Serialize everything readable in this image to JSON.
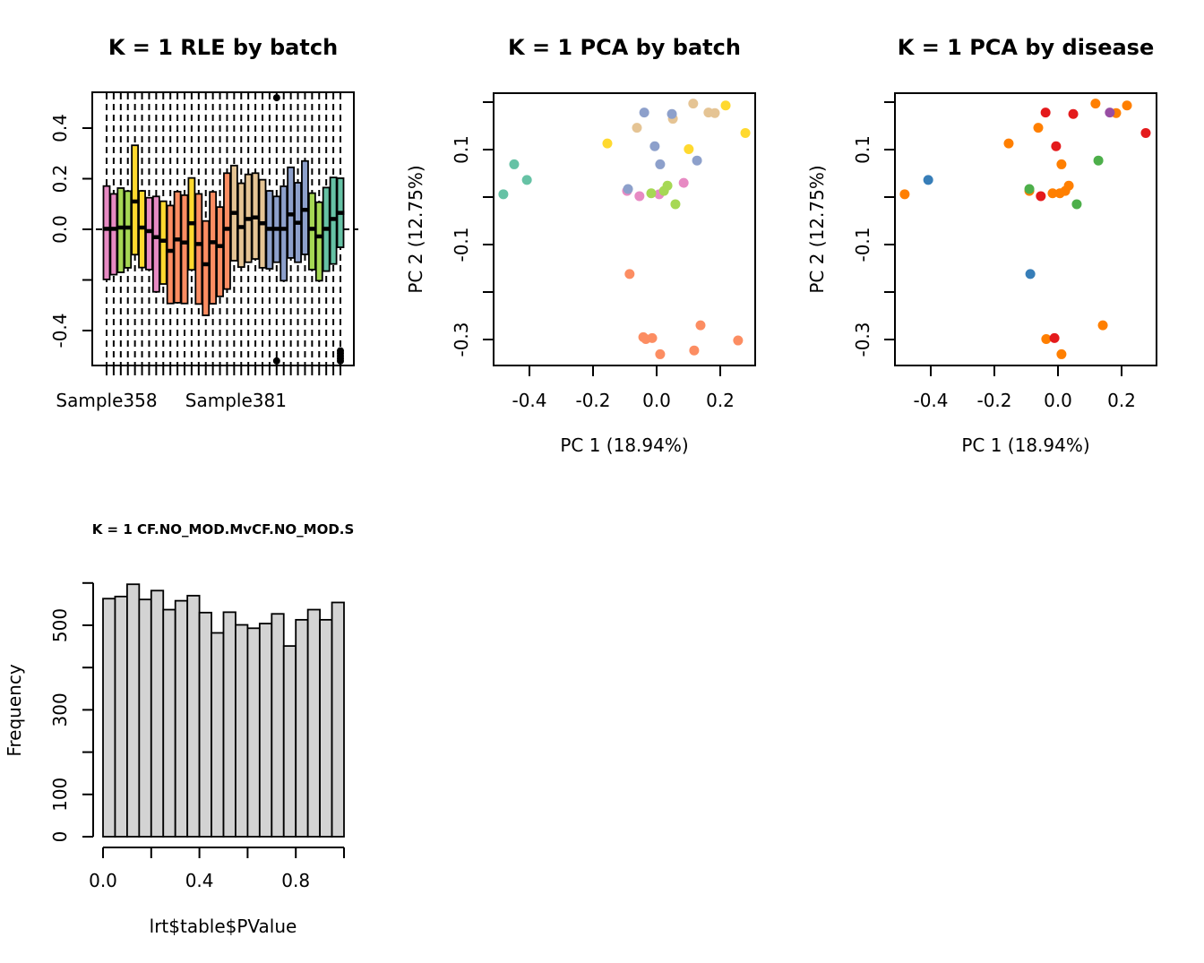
{
  "chart_data": [
    {
      "id": "rle",
      "type": "boxplot",
      "title": "K = 1 RLE by batch",
      "xlabel": "",
      "ylabel": "",
      "ylim": [
        -0.5,
        0.54
      ],
      "yticks": [
        -0.4,
        -0.2,
        0.0,
        0.2,
        0.4
      ],
      "ytick_labels": [
        "-0.4",
        "",
        "0.0",
        "0.2",
        "0.4"
      ],
      "xtick_labels": [
        {
          "index": 1,
          "label": "Sample358"
        },
        {
          "index": 19,
          "label": "Sample381"
        }
      ],
      "reference_line": 0.0,
      "whisker_style": "dashed",
      "colors": {
        "pink": "#E78AC3",
        "green": "#A6D854",
        "yellow": "#FFD92F",
        "orange": "#FC8D62",
        "tan": "#E5C494",
        "blue": "#8DA0CB",
        "teal": "#66C2A5"
      },
      "boxes": [
        {
          "color": "pink",
          "q1": -0.198,
          "median": 0.002,
          "q3": 0.171
        },
        {
          "color": "pink",
          "q1": -0.179,
          "median": 0.002,
          "q3": 0.14
        },
        {
          "color": "green",
          "q1": -0.17,
          "median": 0.007,
          "q3": 0.163
        },
        {
          "color": "green",
          "q1": -0.152,
          "median": 0.007,
          "q3": 0.151
        },
        {
          "color": "yellow",
          "q1": -0.1,
          "median": 0.11,
          "q3": 0.332
        },
        {
          "color": "yellow",
          "q1": -0.151,
          "median": 0.007,
          "q3": 0.152
        },
        {
          "color": "pink",
          "q1": -0.159,
          "median": -0.007,
          "q3": 0.125
        },
        {
          "color": "pink",
          "q1": -0.247,
          "median": -0.031,
          "q3": 0.13
        },
        {
          "color": "yellow",
          "q1": -0.216,
          "median": -0.045,
          "q3": 0.111
        },
        {
          "color": "orange",
          "q1": -0.293,
          "median": -0.085,
          "q3": 0.094
        },
        {
          "color": "orange",
          "q1": -0.29,
          "median": -0.04,
          "q3": 0.149
        },
        {
          "color": "orange",
          "q1": -0.293,
          "median": -0.052,
          "q3": 0.135
        },
        {
          "color": "yellow",
          "q1": -0.16,
          "median": 0.024,
          "q3": 0.203
        },
        {
          "color": "orange",
          "q1": -0.295,
          "median": -0.058,
          "q3": 0.14
        },
        {
          "color": "orange",
          "q1": -0.34,
          "median": -0.138,
          "q3": 0.033
        },
        {
          "color": "orange",
          "q1": -0.294,
          "median": -0.051,
          "q3": 0.148
        },
        {
          "color": "orange",
          "q1": -0.265,
          "median": -0.066,
          "q3": 0.088
        },
        {
          "color": "orange",
          "q1": -0.236,
          "median": 0.002,
          "q3": 0.222
        },
        {
          "color": "tan",
          "q1": -0.124,
          "median": 0.065,
          "q3": 0.252
        },
        {
          "color": "tan",
          "q1": -0.149,
          "median": 0.009,
          "q3": 0.182
        },
        {
          "color": "tan",
          "q1": -0.13,
          "median": 0.041,
          "q3": 0.217
        },
        {
          "color": "tan",
          "q1": -0.117,
          "median": 0.047,
          "q3": 0.222
        },
        {
          "color": "tan",
          "q1": -0.152,
          "median": 0.024,
          "q3": 0.196
        },
        {
          "color": "blue",
          "q1": -0.156,
          "median": 0.002,
          "q3": 0.152
        },
        {
          "color": "blue",
          "q1": -0.13,
          "median": 0.002,
          "q3": 0.13,
          "outliers": [
            0.52,
            -0.52
          ]
        },
        {
          "color": "blue",
          "q1": -0.203,
          "median": 0.002,
          "q3": 0.17
        },
        {
          "color": "blue",
          "q1": -0.113,
          "median": 0.059,
          "q3": 0.245
        },
        {
          "color": "blue",
          "q1": -0.13,
          "median": 0.026,
          "q3": 0.184
        },
        {
          "color": "blue",
          "q1": -0.099,
          "median": 0.077,
          "q3": 0.27
        },
        {
          "color": "green",
          "q1": -0.159,
          "median": 0.002,
          "q3": 0.143
        },
        {
          "color": "green",
          "q1": -0.203,
          "median": -0.028,
          "q3": 0.107
        },
        {
          "color": "teal",
          "q1": -0.165,
          "median": 0.002,
          "q3": 0.165
        },
        {
          "color": "teal",
          "q1": -0.137,
          "median": 0.041,
          "q3": 0.205
        },
        {
          "color": "teal",
          "q1": -0.071,
          "median": 0.065,
          "q3": 0.202,
          "outliers": [
            -0.48,
            -0.49,
            -0.5,
            -0.51,
            -0.52
          ]
        }
      ]
    },
    {
      "id": "pca_batch",
      "type": "scatter",
      "title": "K = 1 PCA by batch",
      "xlabel": "PC 1 (18.94%)",
      "ylabel": "PC 2 (12.75%)",
      "xlim": [
        -0.515,
        0.31
      ],
      "ylim": [
        -0.353,
        0.218
      ],
      "xticks": [
        -0.4,
        -0.2,
        0.0,
        0.2
      ],
      "xtick_labels": [
        "-0.4",
        "-0.2",
        "0.0",
        "0.2"
      ],
      "yticks": [
        -0.3,
        -0.2,
        -0.1,
        0.0,
        0.1,
        0.2
      ],
      "ytick_labels": [
        "-0.3",
        "",
        "-0.1",
        "",
        "0.1",
        ""
      ],
      "points": [
        {
          "x": -0.448,
          "y": 0.069,
          "color": "#66C2A5"
        },
        {
          "x": -0.408,
          "y": 0.036,
          "color": "#66C2A5"
        },
        {
          "x": -0.482,
          "y": 0.006,
          "color": "#66C2A5"
        },
        {
          "x": -0.155,
          "y": 0.113,
          "color": "#FFD92F"
        },
        {
          "x": 0.217,
          "y": 0.193,
          "color": "#FFD92F"
        },
        {
          "x": 0.279,
          "y": 0.135,
          "color": "#FFD92F"
        },
        {
          "x": 0.101,
          "y": 0.101,
          "color": "#FFD92F"
        },
        {
          "x": 0.115,
          "y": 0.197,
          "color": "#E5C494"
        },
        {
          "x": 0.163,
          "y": 0.178,
          "color": "#E5C494"
        },
        {
          "x": 0.183,
          "y": 0.177,
          "color": "#E5C494"
        },
        {
          "x": 0.051,
          "y": 0.165,
          "color": "#E5C494"
        },
        {
          "x": -0.062,
          "y": 0.146,
          "color": "#E5C494"
        },
        {
          "x": -0.039,
          "y": 0.178,
          "color": "#8DA0CB"
        },
        {
          "x": 0.048,
          "y": 0.175,
          "color": "#8DA0CB"
        },
        {
          "x": -0.006,
          "y": 0.107,
          "color": "#8DA0CB"
        },
        {
          "x": 0.011,
          "y": 0.069,
          "color": "#8DA0CB"
        },
        {
          "x": 0.127,
          "y": 0.077,
          "color": "#8DA0CB"
        },
        {
          "x": -0.093,
          "y": 0.013,
          "color": "#E78AC3"
        },
        {
          "x": -0.09,
          "y": 0.017,
          "color": "#8DA0CB"
        },
        {
          "x": -0.054,
          "y": 0.002,
          "color": "#E78AC3"
        },
        {
          "x": 0.008,
          "y": 0.006,
          "color": "#E78AC3"
        },
        {
          "x": 0.085,
          "y": 0.03,
          "color": "#E78AC3"
        },
        {
          "x": -0.017,
          "y": 0.008,
          "color": "#A6D854"
        },
        {
          "x": 0.023,
          "y": 0.013,
          "color": "#A6D854"
        },
        {
          "x": 0.034,
          "y": 0.024,
          "color": "#A6D854"
        },
        {
          "x": 0.059,
          "y": -0.015,
          "color": "#A6D854"
        },
        {
          "x": -0.085,
          "y": -0.162,
          "color": "#FC8D62"
        },
        {
          "x": -0.042,
          "y": -0.295,
          "color": "#FC8D62"
        },
        {
          "x": -0.034,
          "y": -0.299,
          "color": "#FC8D62"
        },
        {
          "x": -0.014,
          "y": -0.297,
          "color": "#FC8D62"
        },
        {
          "x": 0.011,
          "y": -0.331,
          "color": "#FC8D62"
        },
        {
          "x": 0.138,
          "y": -0.27,
          "color": "#FC8D62"
        },
        {
          "x": 0.118,
          "y": -0.323,
          "color": "#FC8D62"
        },
        {
          "x": 0.256,
          "y": -0.302,
          "color": "#FC8D62"
        }
      ]
    },
    {
      "id": "pca_disease",
      "type": "scatter",
      "title": "K = 1 PCA by disease",
      "xlabel": "PC 1 (18.94%)",
      "ylabel": "PC 2 (12.75%)",
      "xlim": [
        -0.515,
        0.31
      ],
      "ylim": [
        -0.353,
        0.218
      ],
      "xticks": [
        -0.4,
        -0.2,
        0.0,
        0.2
      ],
      "xtick_labels": [
        "-0.4",
        "-0.2",
        "0.0",
        "0.2"
      ],
      "yticks": [
        -0.3,
        -0.2,
        -0.1,
        0.0,
        0.1,
        0.2
      ],
      "ytick_labels": [
        "-0.3",
        "",
        "-0.1",
        "",
        "0.1",
        ""
      ],
      "points": [
        {
          "x": -0.482,
          "y": 0.006,
          "color": "#FF7F00"
        },
        {
          "x": -0.408,
          "y": 0.036,
          "color": "#377EB8"
        },
        {
          "x": -0.155,
          "y": 0.113,
          "color": "#FF7F00"
        },
        {
          "x": -0.062,
          "y": 0.146,
          "color": "#FF7F00"
        },
        {
          "x": -0.039,
          "y": 0.178,
          "color": "#E41A1C"
        },
        {
          "x": 0.048,
          "y": 0.175,
          "color": "#E41A1C"
        },
        {
          "x": 0.118,
          "y": 0.197,
          "color": "#FF7F00"
        },
        {
          "x": 0.183,
          "y": 0.177,
          "color": "#FF7F00"
        },
        {
          "x": 0.163,
          "y": 0.178,
          "color": "#984EA3"
        },
        {
          "x": 0.217,
          "y": 0.193,
          "color": "#FF7F00"
        },
        {
          "x": 0.276,
          "y": 0.135,
          "color": "#E41A1C"
        },
        {
          "x": -0.006,
          "y": 0.107,
          "color": "#E41A1C"
        },
        {
          "x": 0.011,
          "y": 0.069,
          "color": "#FF7F00"
        },
        {
          "x": 0.127,
          "y": 0.077,
          "color": "#4DAF4A"
        },
        {
          "x": -0.09,
          "y": 0.013,
          "color": "#FF7F00"
        },
        {
          "x": -0.09,
          "y": 0.017,
          "color": "#4DAF4A"
        },
        {
          "x": -0.054,
          "y": 0.002,
          "color": "#E41A1C"
        },
        {
          "x": -0.017,
          "y": 0.008,
          "color": "#FF7F00"
        },
        {
          "x": 0.006,
          "y": 0.008,
          "color": "#FF7F00"
        },
        {
          "x": 0.023,
          "y": 0.013,
          "color": "#FF7F00"
        },
        {
          "x": 0.034,
          "y": 0.024,
          "color": "#FF7F00"
        },
        {
          "x": 0.059,
          "y": -0.015,
          "color": "#4DAF4A"
        },
        {
          "x": -0.087,
          "y": -0.162,
          "color": "#377EB8"
        },
        {
          "x": -0.037,
          "y": -0.299,
          "color": "#FF7F00"
        },
        {
          "x": -0.011,
          "y": -0.297,
          "color": "#E41A1C"
        },
        {
          "x": 0.011,
          "y": -0.331,
          "color": "#FF7F00"
        },
        {
          "x": 0.141,
          "y": -0.27,
          "color": "#FF7F00"
        }
      ]
    },
    {
      "id": "pvalue_hist",
      "type": "bar",
      "title": "K = 1 CF.NO_MOD.MvCF.NO_MOD.S",
      "xlabel": "lrt$table$PValue",
      "ylabel": "Frequency",
      "xlim": [
        0,
        1
      ],
      "ylim": [
        0,
        600
      ],
      "xticks": [
        0,
        0.2,
        0.4,
        0.6,
        0.8,
        1.0
      ],
      "xtick_labels": [
        "0.0",
        "",
        "0.4",
        "",
        "0.8",
        ""
      ],
      "yticks": [
        0,
        100,
        200,
        300,
        400,
        500,
        600
      ],
      "ytick_labels": [
        "0",
        "100",
        "",
        "300",
        "",
        "500",
        ""
      ],
      "bin_width": 0.05,
      "bar_color": "#D3D3D3",
      "values": [
        563,
        568,
        597,
        561,
        582,
        537,
        558,
        570,
        530,
        482,
        531,
        501,
        493,
        504,
        527,
        451,
        513,
        537,
        513,
        554
      ]
    }
  ]
}
